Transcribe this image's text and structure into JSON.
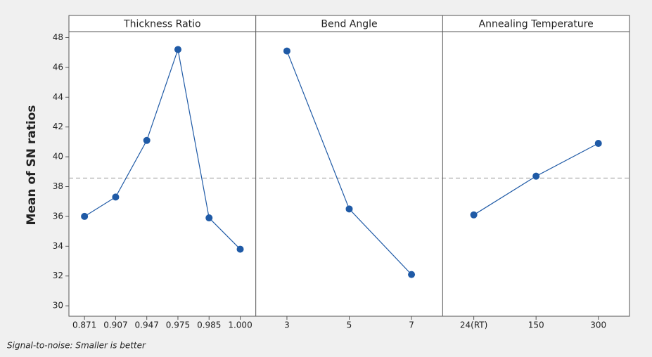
{
  "chart_data": {
    "type": "line",
    "y_label": "Mean of SN ratios",
    "footnote": "Signal-to-noise: Smaller is better",
    "ylim": [
      29.3,
      48.4
    ],
    "yticks": [
      30,
      32,
      34,
      36,
      38,
      40,
      42,
      44,
      46,
      48
    ],
    "reference_line": 38.57,
    "color": "#1f5aa6",
    "panels": [
      {
        "title": "Thickness Ratio",
        "categories": [
          "0.871",
          "0.907",
          "0.947",
          "0.975",
          "0.985",
          "1.000"
        ],
        "values": [
          36.0,
          37.3,
          41.1,
          47.2,
          35.9,
          33.8
        ]
      },
      {
        "title": "Bend Angle",
        "categories": [
          "3",
          "5",
          "7"
        ],
        "values": [
          47.1,
          36.5,
          32.1
        ]
      },
      {
        "title": "Annealing Temperature",
        "categories": [
          "24(RT)",
          "150",
          "300"
        ],
        "values": [
          36.1,
          38.7,
          40.9
        ]
      }
    ]
  }
}
